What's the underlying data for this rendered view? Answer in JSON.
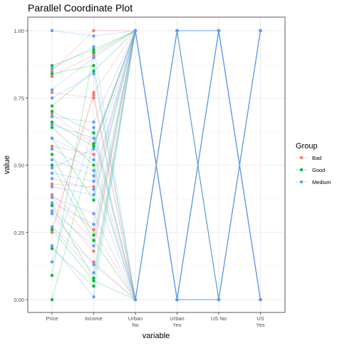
{
  "chart_data": {
    "type": "parallel_coordinates",
    "title": "Parallel Coordinate Plot",
    "xlabel": "variable",
    "ylabel": "value",
    "ylim": [
      0,
      1
    ],
    "grid": true,
    "legend_position": "right",
    "axes": [
      "Price",
      "Income",
      "Urban\nNo",
      "Urban\nYes",
      "US No",
      "US\nYes"
    ],
    "y_ticks": [
      0,
      0.25,
      0.5,
      0.75,
      1
    ],
    "y_tick_labels": [
      "0.00",
      "0.25",
      "0.50",
      "0.75",
      "1.00"
    ],
    "legend": {
      "title": "Group",
      "entries": [
        "Bad",
        "Good",
        "Medium"
      ]
    },
    "colors": {
      "Bad": "#F8766D",
      "Good": "#00BA38",
      "Medium": "#619CFF"
    },
    "series": [
      {
        "group": "Bad",
        "values": [
          0.85,
          1.0,
          1,
          0,
          1,
          0
        ]
      },
      {
        "group": "Bad",
        "values": [
          0.83,
          0.91,
          1,
          0,
          1,
          0
        ]
      },
      {
        "group": "Bad",
        "values": [
          0.77,
          0.75,
          0,
          1,
          0,
          1
        ]
      },
      {
        "group": "Bad",
        "values": [
          0.69,
          0.58,
          1,
          0,
          1,
          0
        ]
      },
      {
        "group": "Bad",
        "values": [
          0.57,
          0.54,
          0,
          1,
          0,
          1
        ]
      },
      {
        "group": "Bad",
        "values": [
          0.43,
          0.42,
          1,
          0,
          0,
          1
        ]
      },
      {
        "group": "Bad",
        "values": [
          0.39,
          0.26,
          0,
          1,
          1,
          0
        ]
      },
      {
        "group": "Bad",
        "values": [
          0.38,
          0.22,
          1,
          0,
          0,
          1
        ]
      },
      {
        "group": "Bad",
        "values": [
          0.35,
          0.18,
          1,
          0,
          1,
          0
        ]
      },
      {
        "group": "Bad",
        "values": [
          0.27,
          0.14,
          0,
          1,
          0,
          1
        ]
      },
      {
        "group": "Bad",
        "values": [
          0.25,
          0.77,
          1,
          0,
          1,
          0
        ]
      },
      {
        "group": "Bad",
        "values": [
          0.26,
          0.76,
          0,
          1,
          1,
          0
        ]
      },
      {
        "group": "Good",
        "values": [
          0.87,
          0.93,
          1,
          0,
          1,
          0
        ]
      },
      {
        "group": "Good",
        "values": [
          0.84,
          0.87,
          0,
          1,
          0,
          1
        ]
      },
      {
        "group": "Good",
        "values": [
          0.72,
          0.85,
          1,
          0,
          1,
          0
        ]
      },
      {
        "group": "Good",
        "values": [
          0.7,
          0.62,
          0,
          1,
          1,
          0
        ]
      },
      {
        "group": "Good",
        "values": [
          0.66,
          0.57,
          1,
          0,
          0,
          1
        ]
      },
      {
        "group": "Good",
        "values": [
          0.64,
          0.5,
          0,
          1,
          0,
          1
        ]
      },
      {
        "group": "Good",
        "values": [
          0.6,
          0.37,
          1,
          0,
          1,
          0
        ]
      },
      {
        "group": "Good",
        "values": [
          0.54,
          0.24,
          1,
          0,
          0,
          1
        ]
      },
      {
        "group": "Good",
        "values": [
          0.5,
          0.22,
          0,
          1,
          1,
          0
        ]
      },
      {
        "group": "Good",
        "values": [
          0.35,
          0.08,
          1,
          0,
          1,
          0
        ]
      },
      {
        "group": "Good",
        "values": [
          0.26,
          0.07,
          0,
          1,
          0,
          1
        ]
      },
      {
        "group": "Good",
        "values": [
          0.19,
          0.05,
          1,
          0,
          0,
          1
        ]
      },
      {
        "group": "Good",
        "values": [
          0.09,
          0.92,
          1,
          0,
          1,
          0
        ]
      },
      {
        "group": "Good",
        "values": [
          0.0,
          0.58,
          1,
          0,
          1,
          0
        ]
      },
      {
        "group": "Medium",
        "values": [
          1.0,
          0.98,
          1,
          0,
          1,
          0
        ]
      },
      {
        "group": "Medium",
        "values": [
          0.86,
          0.94,
          0,
          1,
          0,
          1
        ]
      },
      {
        "group": "Medium",
        "values": [
          0.78,
          0.9,
          1,
          0,
          1,
          0
        ]
      },
      {
        "group": "Medium",
        "values": [
          0.75,
          0.84,
          0,
          1,
          1,
          0
        ]
      },
      {
        "group": "Medium",
        "values": [
          0.68,
          0.66,
          1,
          0,
          0,
          1
        ]
      },
      {
        "group": "Medium",
        "values": [
          0.65,
          0.6,
          0,
          1,
          0,
          1
        ]
      },
      {
        "group": "Medium",
        "values": [
          0.6,
          0.52,
          1,
          0,
          1,
          0
        ]
      },
      {
        "group": "Medium",
        "values": [
          0.56,
          0.48,
          0,
          1,
          1,
          0
        ]
      },
      {
        "group": "Medium",
        "values": [
          0.52,
          0.46,
          1,
          0,
          0,
          1
        ]
      },
      {
        "group": "Medium",
        "values": [
          0.47,
          0.44,
          1,
          0,
          1,
          0
        ]
      },
      {
        "group": "Medium",
        "values": [
          0.45,
          0.41,
          0,
          1,
          0,
          1
        ]
      },
      {
        "group": "Medium",
        "values": [
          0.42,
          0.39,
          1,
          0,
          1,
          0
        ]
      },
      {
        "group": "Medium",
        "values": [
          0.38,
          0.32,
          0,
          1,
          1,
          0
        ]
      },
      {
        "group": "Medium",
        "values": [
          0.36,
          0.28,
          1,
          0,
          0,
          1
        ]
      },
      {
        "group": "Medium",
        "values": [
          0.33,
          0.2,
          1,
          0,
          1,
          0
        ]
      },
      {
        "group": "Medium",
        "values": [
          0.32,
          0.13,
          0,
          1,
          0,
          1
        ]
      },
      {
        "group": "Medium",
        "values": [
          0.27,
          0.1,
          1,
          0,
          1,
          0
        ]
      },
      {
        "group": "Medium",
        "values": [
          0.2,
          0.01,
          1,
          0,
          0,
          1
        ]
      },
      {
        "group": "Medium",
        "values": [
          0.14,
          0.64,
          0,
          1,
          1,
          0
        ]
      },
      {
        "group": "Medium",
        "values": [
          0.49,
          0.56,
          1,
          0,
          1,
          0
        ]
      }
    ]
  }
}
